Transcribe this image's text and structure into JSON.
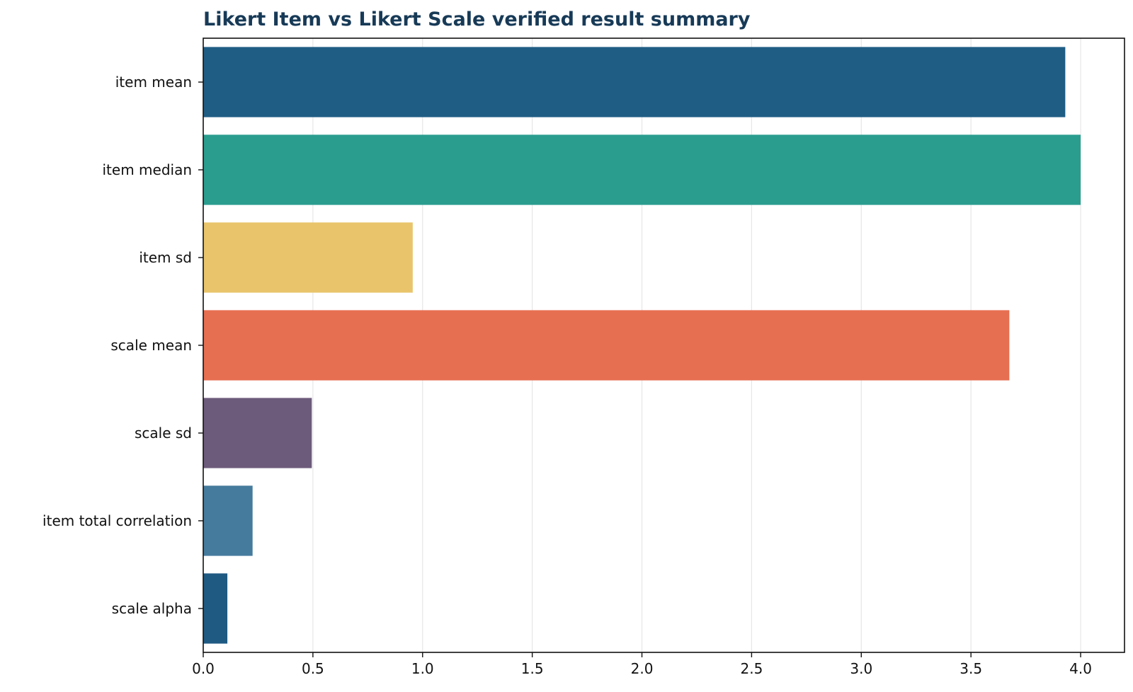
{
  "chart_data": {
    "type": "bar",
    "orientation": "horizontal",
    "title": "Likert Item vs Likert Scale verified result summary",
    "xlabel": "",
    "ylabel": "",
    "xlim": [
      0,
      4.2
    ],
    "xticks": [
      0.0,
      0.5,
      1.0,
      1.5,
      2.0,
      2.5,
      3.0,
      3.5,
      4.0
    ],
    "xtick_labels": [
      "0.0",
      "0.5",
      "1.0",
      "1.5",
      "2.0",
      "2.5",
      "3.0",
      "3.5",
      "4.0"
    ],
    "grid": "vertical",
    "categories": [
      "item mean",
      "item median",
      "item sd",
      "scale mean",
      "scale sd",
      "item total correlation",
      "scale alpha"
    ],
    "values": [
      3.93,
      4.0,
      0.955,
      3.675,
      0.495,
      0.225,
      0.11
    ],
    "colors": [
      "#205d85",
      "#2a9d8f",
      "#e9c46a",
      "#e76f51",
      "#6d5b7b",
      "#457b9d",
      "#1f5a82"
    ]
  }
}
